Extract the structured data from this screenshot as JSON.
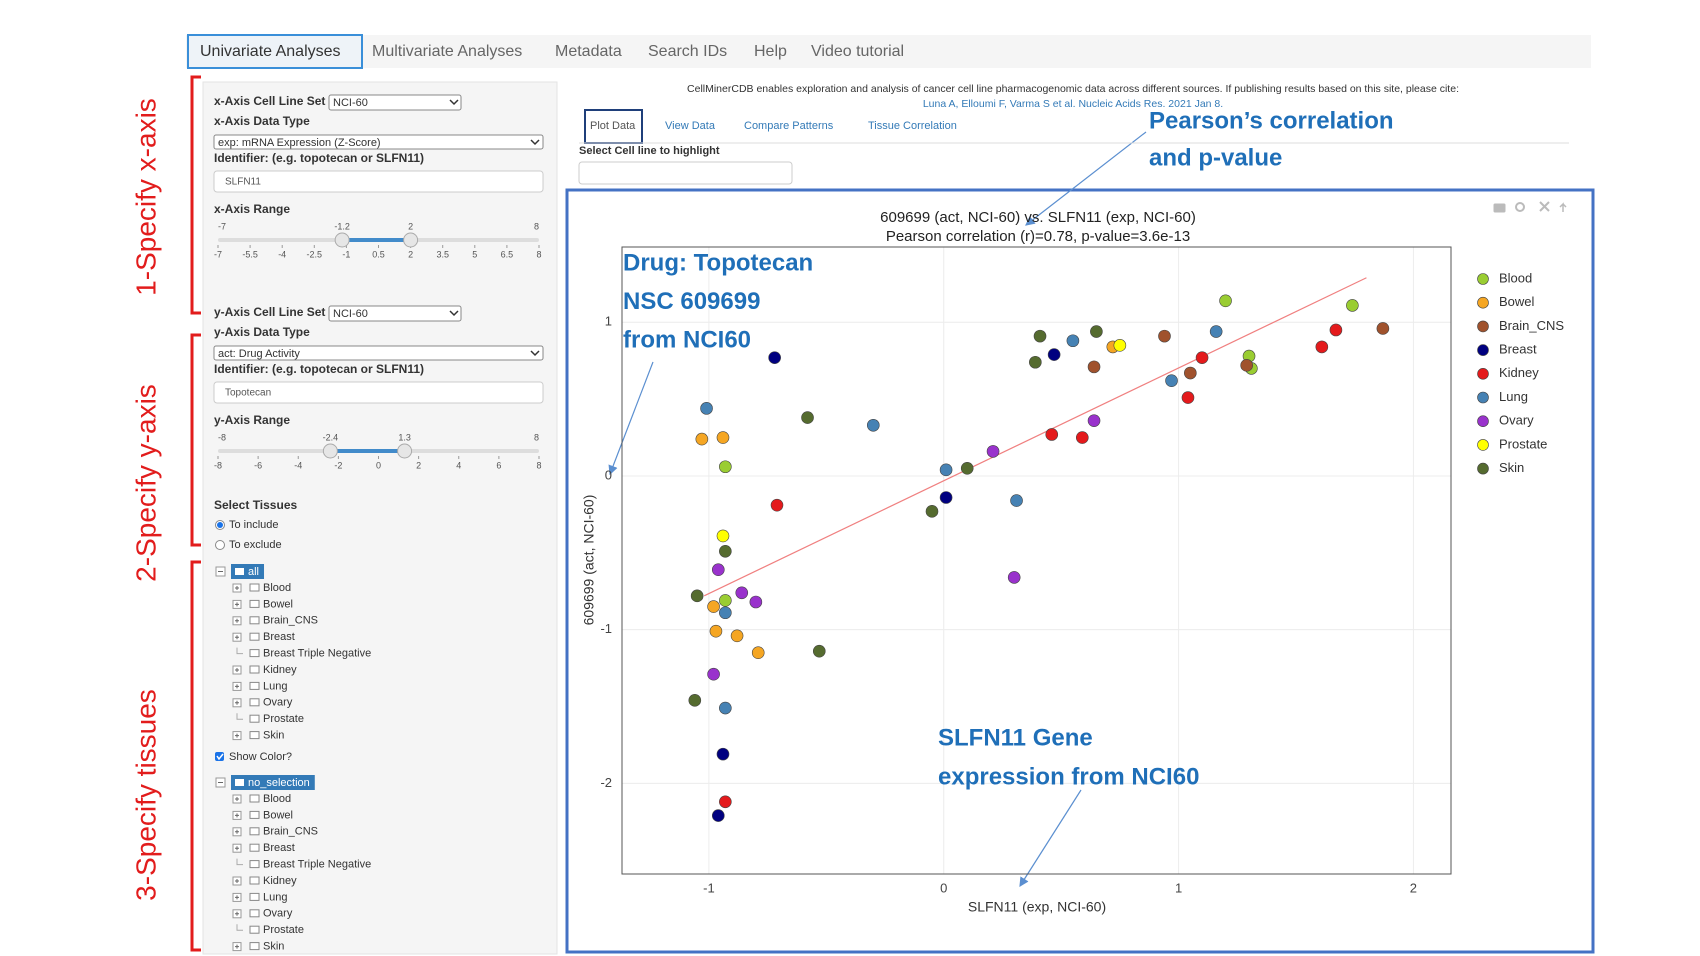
{
  "nav": {
    "tabs": [
      "Univariate Analyses",
      "Multivariate Analyses",
      "Metadata",
      "Search IDs",
      "Help",
      "Video tutorial"
    ]
  },
  "steps": [
    "1-Specify x-axis",
    "2-Specify y-axis",
    "3-Specify tissues"
  ],
  "sidebar": {
    "x_axis": {
      "cell_line_set_label": "x-Axis Cell Line Set",
      "cell_line_set": "NCI-60",
      "data_type_label": "x-Axis Data Type",
      "data_type": "exp: mRNA Expression (Z-Score)",
      "identifier_label": "Identifier: (e.g. topotecan or SLFN11)",
      "identifier": "SLFN11",
      "range_label": "x-Axis Range",
      "range_min": -7,
      "range_max": 8,
      "low": -1.2,
      "high": 2,
      "ticks": [
        -7,
        -5.5,
        -4,
        -2.5,
        -1,
        0.5,
        2,
        3.5,
        5,
        6.5,
        8
      ]
    },
    "y_axis": {
      "cell_line_set_label": "y-Axis Cell Line Set",
      "cell_line_set": "NCI-60",
      "data_type_label": "y-Axis Data Type",
      "data_type": "act: Drug Activity",
      "identifier_label": "Identifier: (e.g. topotecan or SLFN11)",
      "identifier": "Topotecan",
      "range_label": "y-Axis Range",
      "range_min": -8,
      "range_max": 8,
      "low": -2.4,
      "high": 1.3,
      "ticks": [
        -8,
        -6,
        -4,
        -2,
        0,
        2,
        4,
        6,
        8
      ]
    },
    "select_tissues_label": "Select Tissues",
    "tissue_options": [
      "To include",
      "To exclude"
    ],
    "selected_option": 0,
    "tree1": {
      "root": "all",
      "items": [
        "Blood",
        "Bowel",
        "Brain_CNS",
        "Breast",
        "Breast Triple Negative",
        "Kidney",
        "Lung",
        "Ovary",
        "Prostate",
        "Skin"
      ],
      "expandable": [
        true,
        true,
        true,
        true,
        false,
        true,
        true,
        true,
        false,
        true
      ]
    },
    "show_color": "Show Color?",
    "show_color_checked": true,
    "tree2": {
      "root": "no_selection",
      "items": [
        "Blood",
        "Bowel",
        "Brain_CNS",
        "Breast",
        "Breast Triple Negative",
        "Kidney",
        "Lung",
        "Ovary",
        "Prostate",
        "Skin"
      ],
      "expandable": [
        true,
        true,
        true,
        true,
        false,
        true,
        true,
        true,
        false,
        true
      ]
    }
  },
  "citation": {
    "text": "CellMinerCDB enables exploration and analysis of cancer cell line pharmacogenomic data across different sources. If publishing results based on this site, please cite:",
    "link": "Luna A, Elloumi F, Varma S et al. Nucleic Acids Res. 2021 Jan 8."
  },
  "sub_tabs": [
    "Plot Data",
    "View Data",
    "Compare Patterns",
    "Tissue Correlation"
  ],
  "highlight_label": "Select Cell line to highlight",
  "annotations": {
    "correlation": [
      "Pearson’s correlation",
      "and p-value"
    ],
    "drug": [
      "Drug: Topotecan",
      "NSC 609699",
      "from NCI60"
    ],
    "gene": [
      "SLFN11 Gene",
      "expression from NCI60"
    ]
  },
  "chart_data": {
    "type": "scatter",
    "title": "609699 (act, NCI-60) vs. SLFN11 (exp, NCI-60)",
    "subtitle": "Pearson correlation (r)=0.78, p-value=3.6e-13",
    "x_label": "SLFN11 (exp, NCI-60)",
    "y_label": "609699 (act, NCI-60)",
    "xlim": [
      -1.37,
      2.16
    ],
    "ylim": [
      -2.59,
      1.49
    ],
    "xticks": [
      -1,
      0,
      1,
      2
    ],
    "yticks": [
      -2,
      -1,
      0,
      1
    ],
    "grid": true,
    "legend": "right",
    "series": [
      {
        "name": "Blood",
        "color": "#9acd32",
        "x": [
          1.2,
          1.74,
          1.3,
          1.31,
          -0.93,
          -0.93
        ],
        "values": [
          1.14,
          1.11,
          0.78,
          0.7,
          0.06,
          -0.81
        ]
      },
      {
        "name": "Bowel",
        "color": "#f5a623",
        "x": [
          -1.03,
          -0.94,
          -0.98,
          -0.97,
          -0.88,
          -0.79,
          0.72
        ],
        "values": [
          0.24,
          0.25,
          -0.85,
          -1.01,
          -1.04,
          -1.15,
          0.84
        ]
      },
      {
        "name": "Brain_CNS",
        "color": "#a0522d",
        "x": [
          0.94,
          1.87,
          0.64,
          1.05,
          1.29
        ],
        "values": [
          0.91,
          0.96,
          0.71,
          0.67,
          0.72
        ]
      },
      {
        "name": "Breast",
        "color": "#000080",
        "x": [
          -0.72,
          0.47,
          0.01,
          -0.94,
          -0.96
        ],
        "values": [
          0.77,
          0.79,
          -0.14,
          -1.81,
          -2.21
        ]
      },
      {
        "name": "Kidney",
        "color": "#e41a1c",
        "x": [
          1.67,
          1.61,
          1.1,
          1.04,
          0.46,
          0.59,
          -0.71,
          -0.93
        ],
        "values": [
          0.95,
          0.84,
          0.77,
          0.51,
          0.27,
          0.25,
          -0.19,
          -2.12
        ]
      },
      {
        "name": "Lung",
        "color": "#4682b4",
        "x": [
          1.16,
          0.55,
          0.97,
          -1.01,
          -0.3,
          0.01,
          0.31,
          -0.93,
          -0.93
        ],
        "values": [
          0.94,
          0.88,
          0.62,
          0.44,
          0.33,
          0.04,
          -0.16,
          -0.89,
          -1.51
        ]
      },
      {
        "name": "Ovary",
        "color": "#9932cc",
        "x": [
          0.64,
          0.21,
          0.3,
          -0.96,
          -0.86,
          -0.8,
          -0.98
        ],
        "values": [
          0.36,
          0.16,
          -0.66,
          -0.61,
          -0.76,
          -0.82,
          -1.29
        ]
      },
      {
        "name": "Prostate",
        "color": "#ffff00",
        "x": [
          0.75,
          -0.94
        ],
        "values": [
          0.85,
          -0.39
        ]
      },
      {
        "name": "Skin",
        "color": "#556b2f",
        "x": [
          0.41,
          0.65,
          0.39,
          -0.58,
          0.1,
          -0.05,
          -0.93,
          -1.05,
          -0.53,
          -1.06
        ],
        "values": [
          0.91,
          0.94,
          0.74,
          0.38,
          0.05,
          -0.23,
          -0.49,
          -0.78,
          -1.14,
          -1.46
        ]
      }
    ],
    "fit_line": {
      "color": "#f08080",
      "x": [
        -1.02,
        1.8
      ],
      "values": [
        -0.78,
        1.29
      ]
    }
  }
}
